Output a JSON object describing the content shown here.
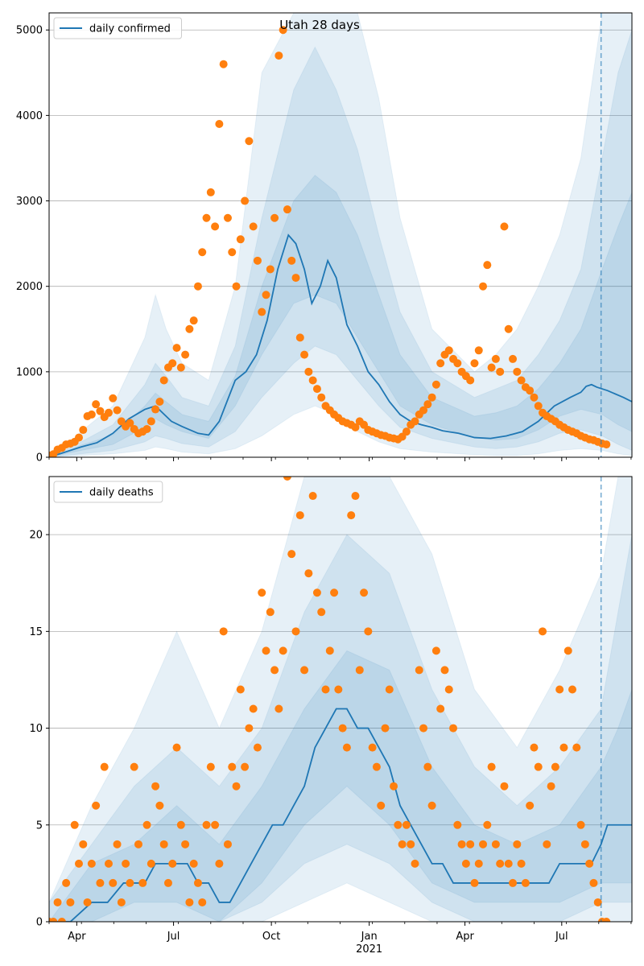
{
  "chart_data": [
    {
      "type": "line",
      "title": "Utah 28 days",
      "legend": {
        "entries": [
          "daily confirmed"
        ],
        "placement": "top-left"
      },
      "ylim": [
        0,
        5200
      ],
      "yticks": [
        0,
        1000,
        2000,
        3000,
        4000,
        5000
      ],
      "grid": "y",
      "colors": {
        "line": "#1f77b4",
        "points": "#ff7f0e",
        "band": "#1f77b4",
        "vline": "#1f77b4"
      },
      "vline_x": 519,
      "line": {
        "x": [
          0,
          15,
          30,
          45,
          60,
          75,
          90,
          100,
          115,
          125,
          140,
          150,
          160,
          175,
          185,
          195,
          205,
          215,
          225,
          232,
          240,
          247,
          255,
          262,
          270,
          280,
          290,
          300,
          310,
          320,
          330,
          340,
          350,
          360,
          370,
          385,
          400,
          415,
          430,
          445,
          460,
          475,
          490,
          500,
          505,
          510,
          515,
          525,
          540,
          548
        ],
        "y": [
          0,
          60,
          120,
          170,
          280,
          450,
          560,
          600,
          420,
          360,
          280,
          260,
          420,
          900,
          1000,
          1200,
          1600,
          2200,
          2600,
          2500,
          2200,
          1800,
          2000,
          2300,
          2100,
          1550,
          1300,
          1000,
          850,
          650,
          500,
          420,
          380,
          350,
          310,
          280,
          230,
          220,
          250,
          300,
          420,
          600,
          700,
          760,
          830,
          850,
          820,
          780,
          700,
          650
        ]
      },
      "bands": [
        {
          "x": [
            0,
            15,
            30,
            60,
            90,
            100,
            110,
            125,
            150,
            175,
            200,
            230,
            250,
            270,
            290,
            310,
            330,
            360,
            400,
            420,
            440,
            460,
            480,
            500,
            520,
            535,
            548
          ],
          "low": [
            0,
            10,
            20,
            40,
            80,
            120,
            100,
            60,
            40,
            100,
            250,
            500,
            600,
            500,
            300,
            180,
            100,
            60,
            30,
            20,
            20,
            40,
            80,
            100,
            80,
            40,
            20
          ],
          "high": [
            60,
            120,
            300,
            600,
            1400,
            1900,
            1500,
            1100,
            900,
            2000,
            4500,
            5200,
            5200,
            5200,
            5200,
            4200,
            2800,
            1500,
            1000,
            1200,
            1500,
            2000,
            2600,
            3500,
            5200,
            5200,
            5200
          ]
        },
        {
          "x": [
            0,
            15,
            30,
            60,
            90,
            100,
            110,
            125,
            150,
            175,
            200,
            230,
            250,
            270,
            290,
            310,
            330,
            360,
            400,
            420,
            440,
            460,
            480,
            500,
            520,
            535,
            548
          ],
          "low": [
            0,
            20,
            40,
            80,
            180,
            250,
            220,
            160,
            120,
            300,
            700,
            1100,
            1300,
            1200,
            900,
            600,
            350,
            220,
            120,
            100,
            120,
            180,
            280,
            320,
            250,
            150,
            80
          ],
          "high": [
            30,
            80,
            180,
            380,
            850,
            1100,
            950,
            700,
            600,
            1300,
            2800,
            4300,
            4800,
            4300,
            3600,
            2600,
            1700,
            1000,
            700,
            800,
            900,
            1200,
            1600,
            2200,
            3500,
            4500,
            5000
          ]
        },
        {
          "x": [
            0,
            15,
            30,
            60,
            90,
            100,
            110,
            125,
            150,
            175,
            200,
            230,
            250,
            270,
            290,
            310,
            330,
            360,
            400,
            420,
            440,
            460,
            480,
            500,
            520,
            535,
            548
          ],
          "low": [
            0,
            40,
            80,
            150,
            350,
            450,
            380,
            300,
            220,
            600,
            1200,
            1800,
            1900,
            1800,
            1400,
            1000,
            600,
            380,
            230,
            200,
            220,
            320,
            480,
            560,
            500,
            380,
            300
          ],
          "high": [
            15,
            60,
            140,
            260,
            600,
            750,
            650,
            500,
            420,
            950,
            2000,
            3000,
            3300,
            3100,
            2600,
            1900,
            1200,
            700,
            480,
            520,
            600,
            800,
            1100,
            1500,
            2200,
            2700,
            3100
          ]
        }
      ],
      "points_x": [
        0,
        4,
        8,
        12,
        16,
        20,
        24,
        28,
        32,
        36,
        40,
        44,
        48,
        52,
        56,
        60,
        64,
        68,
        72,
        76,
        80,
        84,
        88,
        92,
        96,
        100,
        104,
        108,
        112,
        116,
        120,
        124,
        128,
        132,
        136,
        140,
        144,
        148,
        152,
        156,
        160,
        164,
        168,
        172,
        176,
        180,
        184,
        188,
        192,
        196,
        200,
        204,
        208,
        212,
        216,
        220,
        224,
        228,
        232,
        236,
        240,
        244,
        248,
        252,
        256,
        260,
        264,
        268,
        272,
        276,
        280,
        284,
        288,
        292,
        296,
        300,
        304,
        308,
        312,
        316,
        320,
        324,
        328,
        332,
        336,
        340,
        344,
        348,
        352,
        356,
        360,
        364,
        368,
        372,
        376,
        380,
        384,
        388,
        392,
        396,
        400,
        404,
        408,
        412,
        416,
        420,
        424,
        428,
        432,
        436,
        440,
        444,
        448,
        452,
        456,
        460,
        464,
        468,
        472,
        476,
        480,
        484,
        488,
        492,
        496,
        500,
        504,
        508,
        512,
        516,
        520,
        524
      ],
      "points_y": [
        20,
        35,
        90,
        110,
        150,
        160,
        180,
        230,
        320,
        480,
        500,
        620,
        540,
        470,
        520,
        690,
        550,
        420,
        360,
        400,
        330,
        280,
        300,
        330,
        420,
        560,
        650,
        900,
        1050,
        1100,
        1280,
        1050,
        1200,
        1500,
        1600,
        2000,
        2400,
        2800,
        3100,
        2700,
        3900,
        4600,
        2800,
        2400,
        2000,
        2550,
        3000,
        3700,
        2700,
        2300,
        1700,
        1900,
        2200,
        2800,
        4700,
        5000,
        2900,
        2300,
        2100,
        1400,
        1200,
        1000,
        900,
        800,
        700,
        600,
        550,
        500,
        460,
        420,
        400,
        380,
        350,
        420,
        380,
        320,
        300,
        280,
        260,
        250,
        230,
        220,
        210,
        240,
        300,
        380,
        420,
        500,
        550,
        620,
        700,
        850,
        1100,
        1200,
        1250,
        1150,
        1100,
        1000,
        950,
        900,
        1100,
        1250,
        2000,
        2250,
        1050,
        1150,
        1000,
        2700,
        1500,
        1150,
        1000,
        900,
        820,
        780,
        700,
        600,
        520,
        480,
        450,
        420,
        380,
        350,
        320,
        300,
        280,
        250,
        230,
        210,
        200,
        180,
        160,
        150
      ]
    },
    {
      "type": "line",
      "legend": {
        "entries": [
          "daily deaths"
        ],
        "placement": "top-left"
      },
      "ylim": [
        0,
        23
      ],
      "yticks": [
        0,
        5,
        10,
        15,
        20
      ],
      "grid": "y",
      "colors": {
        "line": "#1f77b4",
        "points": "#ff7f0e",
        "band": "#1f77b4",
        "vline": "#1f77b4"
      },
      "vline_x": 519,
      "xticks": [
        {
          "x": 26,
          "label": "Apr"
        },
        {
          "x": 117,
          "label": "Jul"
        },
        {
          "x": 209,
          "label": "Oct"
        },
        {
          "x": 301,
          "label": "Jan",
          "sublabel": "2021"
        },
        {
          "x": 391,
          "label": "Apr"
        },
        {
          "x": 482,
          "label": "Jul"
        }
      ],
      "xlim": [
        0,
        548
      ],
      "line": {
        "x": [
          0,
          20,
          40,
          55,
          70,
          80,
          90,
          100,
          110,
          120,
          130,
          140,
          150,
          160,
          170,
          180,
          190,
          200,
          210,
          220,
          230,
          240,
          250,
          260,
          270,
          280,
          290,
          300,
          310,
          320,
          330,
          340,
          350,
          360,
          370,
          380,
          390,
          400,
          410,
          420,
          430,
          440,
          450,
          460,
          470,
          480,
          490,
          500,
          510,
          519,
          525,
          535,
          548
        ],
        "y": [
          0,
          0,
          1,
          1,
          2,
          2,
          2,
          3,
          3,
          3,
          3,
          2,
          2,
          1,
          1,
          2,
          3,
          4,
          5,
          5,
          6,
          7,
          9,
          10,
          11,
          11,
          10,
          10,
          9,
          8,
          6,
          5,
          4,
          3,
          3,
          2,
          2,
          2,
          2,
          2,
          2,
          2,
          2,
          2,
          2,
          3,
          3,
          3,
          3,
          4,
          5,
          5,
          5
        ]
      },
      "bands": [
        {
          "x": [
            0,
            40,
            80,
            120,
            160,
            200,
            240,
            280,
            320,
            360,
            400,
            440,
            480,
            519,
            535,
            548
          ],
          "low": [
            0,
            0,
            0,
            0,
            0,
            0,
            1,
            2,
            1,
            0,
            0,
            0,
            0,
            0,
            0,
            0
          ],
          "high": [
            1,
            6,
            10,
            15,
            10,
            15,
            23,
            23,
            23,
            19,
            12,
            9,
            13,
            18,
            23,
            23
          ]
        },
        {
          "x": [
            0,
            40,
            80,
            120,
            160,
            200,
            240,
            280,
            320,
            360,
            400,
            440,
            480,
            519,
            535,
            548
          ],
          "low": [
            0,
            0,
            0,
            0,
            0,
            1,
            3,
            4,
            3,
            1,
            0,
            0,
            0,
            1,
            1,
            1
          ],
          "high": [
            1,
            4,
            7,
            9,
            7,
            10,
            16,
            20,
            18,
            12,
            8,
            6,
            8,
            11,
            16,
            20
          ]
        },
        {
          "x": [
            0,
            40,
            80,
            120,
            160,
            200,
            240,
            280,
            320,
            360,
            400,
            440,
            480,
            519,
            535,
            548
          ],
          "low": [
            0,
            0,
            1,
            1,
            0,
            2,
            5,
            7,
            5,
            2,
            1,
            1,
            1,
            2,
            2,
            2
          ],
          "high": [
            0,
            3,
            4,
            6,
            4,
            7,
            11,
            14,
            13,
            8,
            5,
            4,
            5,
            8,
            10,
            12
          ]
        }
      ],
      "points_x": [
        0,
        4,
        8,
        12,
        16,
        20,
        24,
        28,
        32,
        36,
        40,
        44,
        48,
        52,
        56,
        60,
        64,
        68,
        72,
        76,
        80,
        84,
        88,
        92,
        96,
        100,
        104,
        108,
        112,
        116,
        120,
        124,
        128,
        132,
        136,
        140,
        144,
        148,
        152,
        156,
        160,
        164,
        168,
        172,
        176,
        180,
        184,
        188,
        192,
        196,
        200,
        204,
        208,
        212,
        216,
        220,
        224,
        228,
        232,
        236,
        240,
        244,
        248,
        252,
        256,
        260,
        264,
        268,
        272,
        276,
        280,
        284,
        288,
        292,
        296,
        300,
        304,
        308,
        312,
        316,
        320,
        324,
        328,
        332,
        336,
        340,
        344,
        348,
        352,
        356,
        360,
        364,
        368,
        372,
        376,
        380,
        384,
        388,
        392,
        396,
        400,
        404,
        408,
        412,
        416,
        420,
        424,
        428,
        432,
        436,
        440,
        444,
        448,
        452,
        456,
        460,
        464,
        468,
        472,
        476,
        480,
        484,
        488,
        492,
        496,
        500,
        504,
        508,
        512,
        516,
        520,
        524
      ],
      "points_y": [
        0,
        0,
        1,
        0,
        2,
        1,
        5,
        3,
        4,
        1,
        3,
        6,
        2,
        8,
        3,
        2,
        4,
        1,
        3,
        2,
        8,
        4,
        2,
        5,
        3,
        7,
        6,
        4,
        2,
        3,
        9,
        5,
        4,
        1,
        3,
        2,
        1,
        5,
        8,
        5,
        3,
        15,
        4,
        8,
        7,
        12,
        8,
        10,
        11,
        9,
        17,
        14,
        16,
        13,
        11,
        14,
        23,
        19,
        15,
        21,
        13,
        18,
        22,
        17,
        16,
        12,
        14,
        17,
        12,
        10,
        9,
        21,
        22,
        13,
        17,
        15,
        9,
        8,
        6,
        10,
        12,
        7,
        5,
        4,
        5,
        4,
        3,
        13,
        10,
        8,
        6,
        14,
        11,
        13,
        12,
        10,
        5,
        4,
        3,
        4,
        2,
        3,
        4,
        5,
        8,
        4,
        3,
        7,
        3,
        2,
        4,
        3,
        2,
        6,
        9,
        8,
        15,
        4,
        7,
        8,
        12,
        9,
        14,
        12,
        9,
        5,
        4,
        3,
        2,
        1,
        0,
        0
      ]
    }
  ]
}
